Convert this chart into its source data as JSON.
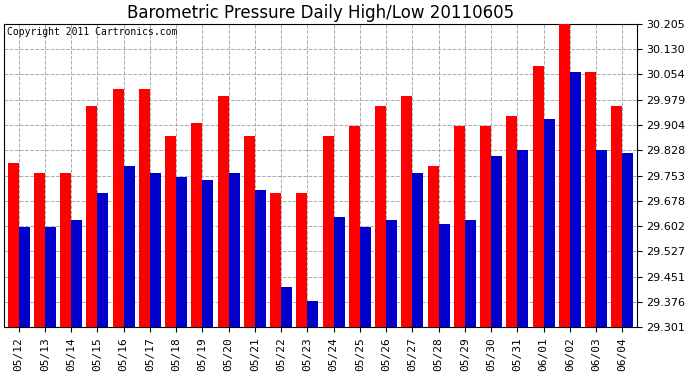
{
  "title": "Barometric Pressure Daily High/Low 20110605",
  "copyright_text": "Copyright 2011 Cartronics.com",
  "dates": [
    "05/12",
    "05/13",
    "05/14",
    "05/15",
    "05/16",
    "05/17",
    "05/18",
    "05/19",
    "05/20",
    "05/21",
    "05/22",
    "05/23",
    "05/24",
    "05/25",
    "05/26",
    "05/27",
    "05/28",
    "05/29",
    "05/30",
    "05/31",
    "06/01",
    "06/02",
    "06/03",
    "06/04"
  ],
  "highs": [
    29.79,
    29.76,
    29.76,
    29.96,
    30.01,
    30.01,
    29.87,
    29.91,
    29.99,
    29.87,
    29.7,
    29.7,
    29.87,
    29.9,
    29.96,
    29.99,
    29.78,
    29.9,
    29.9,
    29.93,
    30.08,
    30.22,
    30.06,
    29.96
  ],
  "lows": [
    29.6,
    29.6,
    29.62,
    29.7,
    29.78,
    29.76,
    29.75,
    29.74,
    29.76,
    29.71,
    29.42,
    29.38,
    29.63,
    29.6,
    29.62,
    29.76,
    29.61,
    29.62,
    29.81,
    29.83,
    29.92,
    30.06,
    29.83,
    29.82
  ],
  "high_color": "#ff0000",
  "low_color": "#0000cc",
  "background_color": "#ffffff",
  "grid_color": "#aaaaaa",
  "ylim_min": 29.301,
  "ylim_max": 30.205,
  "yticks": [
    29.301,
    29.376,
    29.451,
    29.527,
    29.602,
    29.678,
    29.753,
    29.828,
    29.904,
    29.979,
    30.054,
    30.13,
    30.205
  ],
  "bar_width": 0.42,
  "title_fontsize": 12,
  "tick_fontsize": 8,
  "copyright_fontsize": 7
}
